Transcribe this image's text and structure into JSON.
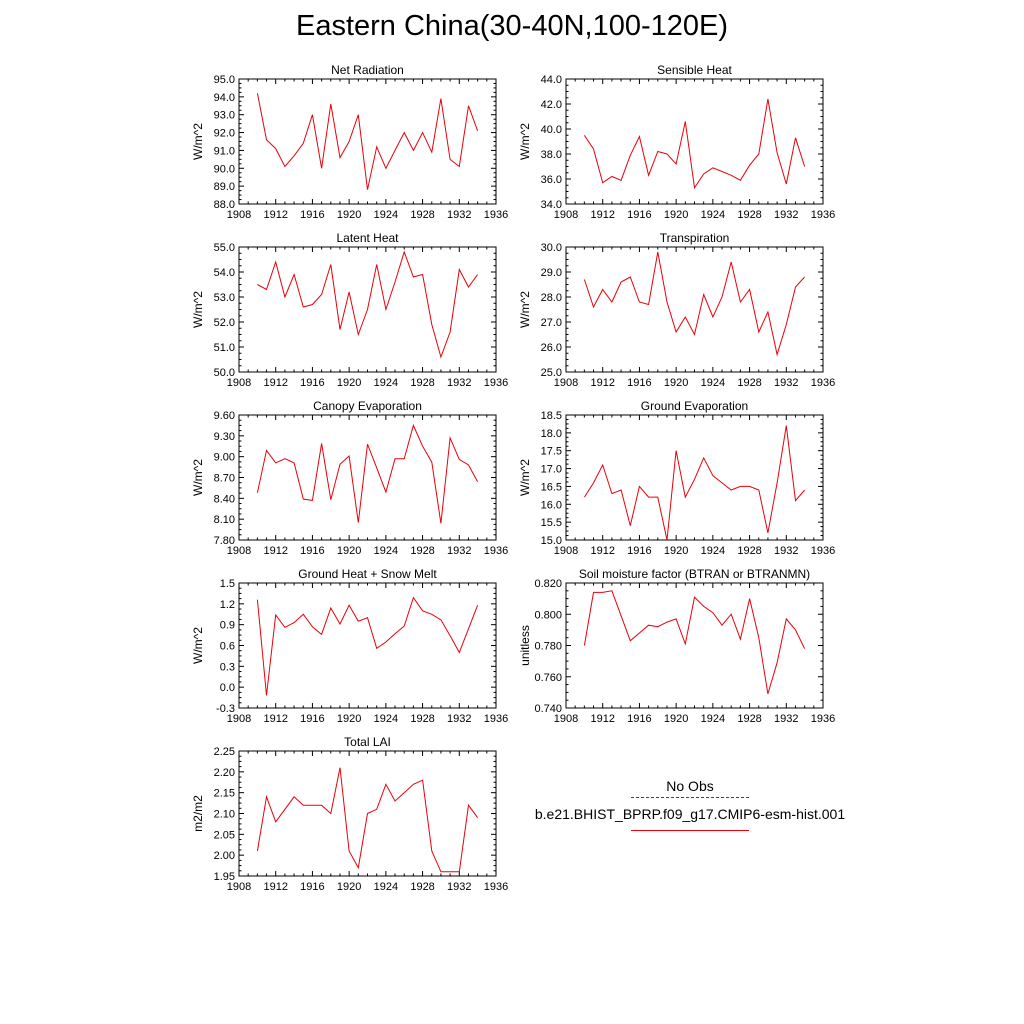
{
  "title": "Eastern China(30-40N,100-120E)",
  "legend": {
    "obs_label": "No Obs",
    "model_label": "b.e21.BHIST_BPRP.f09_g17.CMIP6-esm-hist.001",
    "model_color": "#e8000a",
    "obs_color": "#3a3a88"
  },
  "chart_data": [
    {
      "type": "line",
      "title": "Net Radiation",
      "ylabel": "W/m^2",
      "xlim": [
        1908,
        1936
      ],
      "ylim": [
        88.0,
        95.0
      ],
      "xticks": [
        1908,
        1912,
        1916,
        1920,
        1924,
        1928,
        1932,
        1936
      ],
      "xtick_labels": [
        "1908",
        "1912",
        "1916",
        "1920",
        "1924",
        "1928",
        "1932",
        "1936"
      ],
      "yticks": [
        88.0,
        89.0,
        90.0,
        91.0,
        92.0,
        93.0,
        94.0,
        95.0
      ],
      "ytick_labels": [
        "88.0",
        "89.0",
        "90.0",
        "91.0",
        "92.0",
        "93.0",
        "94.0",
        "95.0"
      ],
      "series": [
        {
          "x": [
            1910,
            1911,
            1912,
            1913,
            1914,
            1915,
            1916,
            1917,
            1918,
            1919,
            1920,
            1921,
            1922,
            1923,
            1924,
            1925,
            1926,
            1927,
            1928,
            1929,
            1930,
            1931,
            1932,
            1933,
            1934
          ],
          "y": [
            94.2,
            91.6,
            91.1,
            90.1,
            90.7,
            91.4,
            93.0,
            90.0,
            93.6,
            90.6,
            91.5,
            93.0,
            88.8,
            91.2,
            90.0,
            91.0,
            92.0,
            91.0,
            92.0,
            90.9,
            93.9,
            90.5,
            90.1,
            93.5,
            92.1
          ]
        }
      ]
    },
    {
      "type": "line",
      "title": "Sensible Heat",
      "ylabel": "W/m^2",
      "xlim": [
        1908,
        1936
      ],
      "ylim": [
        34.0,
        44.0
      ],
      "xticks": [
        1908,
        1912,
        1916,
        1920,
        1924,
        1928,
        1932,
        1936
      ],
      "xtick_labels": [
        "1908",
        "1912",
        "1916",
        "1920",
        "1924",
        "1928",
        "1932",
        "1936"
      ],
      "yticks": [
        34.0,
        36.0,
        38.0,
        40.0,
        42.0,
        44.0
      ],
      "ytick_labels": [
        "34.0",
        "36.0",
        "38.0",
        "40.0",
        "42.0",
        "44.0"
      ],
      "series": [
        {
          "x": [
            1910,
            1911,
            1912,
            1913,
            1914,
            1915,
            1916,
            1917,
            1918,
            1919,
            1920,
            1921,
            1922,
            1923,
            1924,
            1925,
            1926,
            1927,
            1928,
            1929,
            1930,
            1931,
            1932,
            1933,
            1934
          ],
          "y": [
            39.5,
            38.4,
            35.7,
            36.2,
            35.9,
            37.9,
            39.4,
            36.3,
            38.2,
            38.0,
            37.2,
            40.6,
            35.3,
            36.4,
            36.9,
            36.6,
            36.3,
            35.9,
            37.1,
            38.0,
            42.4,
            38.1,
            35.6,
            39.3,
            37.0
          ]
        }
      ]
    },
    {
      "type": "line",
      "title": "Latent Heat",
      "ylabel": "W/m^2",
      "xlim": [
        1908,
        1936
      ],
      "ylim": [
        50.0,
        55.0
      ],
      "xticks": [
        1908,
        1912,
        1916,
        1920,
        1924,
        1928,
        1932,
        1936
      ],
      "xtick_labels": [
        "1908",
        "1912",
        "1916",
        "1920",
        "1924",
        "1928",
        "1932",
        "1936"
      ],
      "yticks": [
        50.0,
        51.0,
        52.0,
        53.0,
        54.0,
        55.0
      ],
      "ytick_labels": [
        "50.0",
        "51.0",
        "52.0",
        "53.0",
        "54.0",
        "55.0"
      ],
      "series": [
        {
          "x": [
            1910,
            1911,
            1912,
            1913,
            1914,
            1915,
            1916,
            1917,
            1918,
            1919,
            1920,
            1921,
            1922,
            1923,
            1924,
            1925,
            1926,
            1927,
            1928,
            1929,
            1930,
            1931,
            1932,
            1933,
            1934
          ],
          "y": [
            53.5,
            53.3,
            54.4,
            53.0,
            53.9,
            52.6,
            52.7,
            53.1,
            54.3,
            51.7,
            53.2,
            51.5,
            52.5,
            54.3,
            52.5,
            53.6,
            54.8,
            53.8,
            53.9,
            51.9,
            50.6,
            51.6,
            54.1,
            53.4,
            53.9
          ]
        }
      ]
    },
    {
      "type": "line",
      "title": "Transpiration",
      "ylabel": "W/m^2",
      "xlim": [
        1908,
        1936
      ],
      "ylim": [
        25.0,
        30.0
      ],
      "xticks": [
        1908,
        1912,
        1916,
        1920,
        1924,
        1928,
        1932,
        1936
      ],
      "xtick_labels": [
        "1908",
        "1912",
        "1916",
        "1920",
        "1924",
        "1928",
        "1932",
        "1936"
      ],
      "yticks": [
        25.0,
        26.0,
        27.0,
        28.0,
        29.0,
        30.0
      ],
      "ytick_labels": [
        "25.0",
        "26.0",
        "27.0",
        "28.0",
        "29.0",
        "30.0"
      ],
      "series": [
        {
          "x": [
            1910,
            1911,
            1912,
            1913,
            1914,
            1915,
            1916,
            1917,
            1918,
            1919,
            1920,
            1921,
            1922,
            1923,
            1924,
            1925,
            1926,
            1927,
            1928,
            1929,
            1930,
            1931,
            1932,
            1933,
            1934
          ],
          "y": [
            28.7,
            27.6,
            28.3,
            27.8,
            28.6,
            28.8,
            27.8,
            27.7,
            29.8,
            27.8,
            26.6,
            27.2,
            26.5,
            28.1,
            27.2,
            28.0,
            29.4,
            27.8,
            28.3,
            26.6,
            27.4,
            25.7,
            26.9,
            28.4,
            28.8
          ]
        }
      ]
    },
    {
      "type": "line",
      "title": "Canopy Evaporation",
      "ylabel": "W/m^2",
      "xlim": [
        1908,
        1936
      ],
      "ylim": [
        7.8,
        9.6
      ],
      "xticks": [
        1908,
        1912,
        1916,
        1920,
        1924,
        1928,
        1932,
        1936
      ],
      "xtick_labels": [
        "1908",
        "1912",
        "1916",
        "1920",
        "1924",
        "1928",
        "1932",
        "1936"
      ],
      "yticks": [
        7.8,
        8.1,
        8.4,
        8.7,
        9.0,
        9.3,
        9.6
      ],
      "ytick_labels": [
        "7.80",
        "8.10",
        "8.40",
        "8.70",
        "9.00",
        "9.30",
        "9.60"
      ],
      "series": [
        {
          "x": [
            1910,
            1911,
            1912,
            1913,
            1914,
            1915,
            1916,
            1917,
            1918,
            1919,
            1920,
            1921,
            1922,
            1923,
            1924,
            1925,
            1926,
            1927,
            1928,
            1929,
            1930,
            1931,
            1932,
            1933,
            1934
          ],
          "y": [
            8.48,
            9.09,
            8.91,
            8.97,
            8.91,
            8.39,
            8.37,
            9.19,
            8.38,
            8.89,
            9.01,
            8.05,
            9.18,
            8.84,
            8.49,
            8.97,
            8.97,
            9.45,
            9.15,
            8.92,
            8.04,
            9.27,
            8.96,
            8.88,
            8.64
          ]
        }
      ]
    },
    {
      "type": "line",
      "title": "Ground Evaporation",
      "ylabel": "W/m^2",
      "xlim": [
        1908,
        1936
      ],
      "ylim": [
        15.0,
        18.5
      ],
      "xticks": [
        1908,
        1912,
        1916,
        1920,
        1924,
        1928,
        1932,
        1936
      ],
      "xtick_labels": [
        "1908",
        "1912",
        "1916",
        "1920",
        "1924",
        "1928",
        "1932",
        "1936"
      ],
      "yticks": [
        15.0,
        15.5,
        16.0,
        16.5,
        17.0,
        17.5,
        18.0,
        18.5
      ],
      "ytick_labels": [
        "15.0",
        "15.5",
        "16.0",
        "16.5",
        "17.0",
        "17.5",
        "18.0",
        "18.5"
      ],
      "series": [
        {
          "x": [
            1910,
            1911,
            1912,
            1913,
            1914,
            1915,
            1916,
            1917,
            1918,
            1919,
            1920,
            1921,
            1922,
            1923,
            1924,
            1925,
            1926,
            1927,
            1928,
            1929,
            1930,
            1931,
            1932,
            1933,
            1934
          ],
          "y": [
            16.2,
            16.6,
            17.1,
            16.3,
            16.4,
            15.4,
            16.5,
            16.2,
            16.2,
            15.0,
            17.5,
            16.2,
            16.7,
            17.3,
            16.8,
            16.6,
            16.4,
            16.5,
            16.5,
            16.4,
            15.2,
            16.6,
            18.2,
            16.1,
            16.4
          ]
        }
      ]
    },
    {
      "type": "line",
      "title": "Ground Heat + Snow Melt",
      "ylabel": "W/m^2",
      "xlim": [
        1908,
        1936
      ],
      "ylim": [
        -0.3,
        1.5
      ],
      "xticks": [
        1908,
        1912,
        1916,
        1920,
        1924,
        1928,
        1932,
        1936
      ],
      "xtick_labels": [
        "1908",
        "1912",
        "1916",
        "1920",
        "1924",
        "1928",
        "1932",
        "1936"
      ],
      "yticks": [
        -0.3,
        0.0,
        0.3,
        0.6,
        0.9,
        1.2,
        1.5
      ],
      "ytick_labels": [
        "-0.3",
        "0.0",
        "0.3",
        "0.6",
        "0.9",
        "1.2",
        "1.5"
      ],
      "series": [
        {
          "x": [
            1910,
            1911,
            1912,
            1913,
            1914,
            1915,
            1916,
            1917,
            1918,
            1919,
            1920,
            1921,
            1922,
            1923,
            1924,
            1925,
            1926,
            1927,
            1928,
            1929,
            1930,
            1931,
            1932,
            1933,
            1934
          ],
          "y": [
            1.26,
            -0.12,
            1.04,
            0.86,
            0.93,
            1.05,
            0.87,
            0.76,
            1.14,
            0.91,
            1.18,
            0.95,
            1.0,
            0.56,
            0.65,
            0.77,
            0.88,
            1.29,
            1.1,
            1.05,
            0.97,
            0.74,
            0.5,
            0.84,
            1.18
          ]
        }
      ]
    },
    {
      "type": "line",
      "title": "Soil moisture factor (BTRAN or BTRANMN)",
      "ylabel": "unitless",
      "xlim": [
        1908,
        1936
      ],
      "ylim": [
        0.74,
        0.82
      ],
      "xticks": [
        1908,
        1912,
        1916,
        1920,
        1924,
        1928,
        1932,
        1936
      ],
      "xtick_labels": [
        "1908",
        "1912",
        "1916",
        "1920",
        "1924",
        "1928",
        "1932",
        "1936"
      ],
      "yticks": [
        0.74,
        0.76,
        0.78,
        0.8,
        0.82
      ],
      "ytick_labels": [
        "0.740",
        "0.760",
        "0.780",
        "0.800",
        "0.820"
      ],
      "series": [
        {
          "x": [
            1910,
            1911,
            1912,
            1913,
            1914,
            1915,
            1916,
            1917,
            1918,
            1919,
            1920,
            1921,
            1922,
            1923,
            1924,
            1925,
            1926,
            1927,
            1928,
            1929,
            1930,
            1931,
            1932,
            1933,
            1934
          ],
          "y": [
            0.78,
            0.814,
            0.814,
            0.815,
            0.799,
            0.783,
            0.788,
            0.793,
            0.792,
            0.795,
            0.797,
            0.781,
            0.811,
            0.805,
            0.801,
            0.793,
            0.8,
            0.784,
            0.81,
            0.785,
            0.749,
            0.769,
            0.797,
            0.79,
            0.778
          ]
        }
      ]
    },
    {
      "type": "line",
      "title": "Total LAI",
      "ylabel": "m2/m2",
      "xlim": [
        1908,
        1936
      ],
      "ylim": [
        1.95,
        2.25
      ],
      "xticks": [
        1908,
        1912,
        1916,
        1920,
        1924,
        1928,
        1932,
        1936
      ],
      "xtick_labels": [
        "1908",
        "1912",
        "1916",
        "1920",
        "1924",
        "1928",
        "1932",
        "1936"
      ],
      "yticks": [
        1.95,
        2.0,
        2.05,
        2.1,
        2.15,
        2.2,
        2.25
      ],
      "ytick_labels": [
        "1.95",
        "2.00",
        "2.05",
        "2.10",
        "2.15",
        "2.20",
        "2.25"
      ],
      "series": [
        {
          "x": [
            1910,
            1911,
            1912,
            1913,
            1914,
            1915,
            1916,
            1917,
            1918,
            1919,
            1920,
            1921,
            1922,
            1923,
            1924,
            1925,
            1926,
            1927,
            1928,
            1929,
            1930,
            1931,
            1932,
            1933,
            1934
          ],
          "y": [
            2.01,
            2.14,
            2.08,
            2.11,
            2.14,
            2.12,
            2.12,
            2.12,
            2.1,
            2.21,
            2.01,
            1.97,
            2.1,
            2.11,
            2.17,
            2.13,
            2.15,
            2.17,
            2.18,
            2.01,
            1.96,
            1.96,
            1.96,
            2.12,
            2.09
          ]
        }
      ]
    }
  ]
}
